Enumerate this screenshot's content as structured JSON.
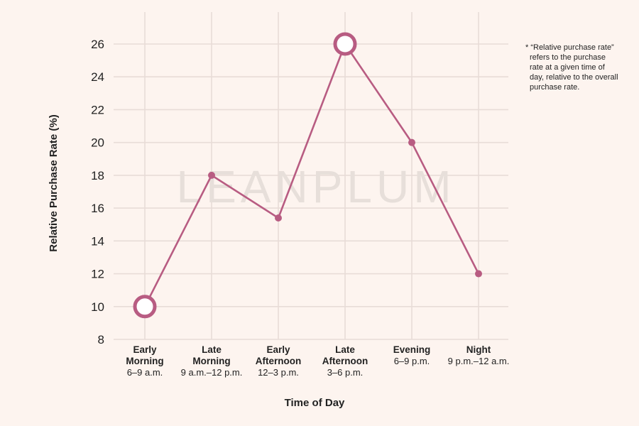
{
  "chart_data": {
    "type": "line",
    "categories": [
      {
        "name": [
          "Early",
          "Morning"
        ],
        "time": "6–9 a.m."
      },
      {
        "name": [
          "Late",
          "Morning"
        ],
        "time": "9 a.m.–12 p.m."
      },
      {
        "name": [
          "Early",
          "Afternoon"
        ],
        "time": "12–3 p.m."
      },
      {
        "name": [
          "Late",
          "Afternoon"
        ],
        "time": "3–6 p.m."
      },
      {
        "name": [
          "Evening"
        ],
        "time": "6–9 p.m."
      },
      {
        "name": [
          "Night"
        ],
        "time": "9 p.m.–12 a.m."
      }
    ],
    "values": [
      10,
      18,
      15.4,
      26,
      20,
      12
    ],
    "highlighted_points": [
      0,
      3
    ],
    "xlabel": "Time of Day",
    "ylabel": "Relative Purchase Rate (%)",
    "ylim": [
      8,
      26
    ],
    "yticks": [
      8,
      10,
      12,
      14,
      16,
      18,
      20,
      22,
      24,
      26
    ],
    "grid": true,
    "line_color": "#b85c82",
    "grid_color": "#e8dcd7",
    "footnote": [
      "* “Relative purchase rate”",
      "refers to the purchase",
      "rate at a given time of",
      "day, relative to the overall",
      "purchase rate."
    ],
    "watermark": "LEANPLUM"
  }
}
